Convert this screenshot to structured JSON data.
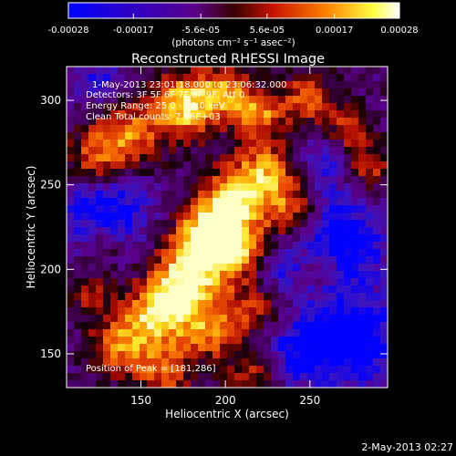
{
  "colorbar": {
    "ticks": [
      "-0.00028",
      "-0.00017",
      "-5.6e-05",
      "5.6e-05",
      "0.00017",
      "0.00028"
    ],
    "tick_values": [
      -0.00028,
      -0.00017,
      -5.6e-05,
      5.6e-05,
      0.00017,
      0.00028
    ],
    "range": [
      -0.00028,
      0.00028
    ],
    "units_label": "(photons cm⁻² s⁻¹ asec⁻²)",
    "stops": [
      "#0000ff",
      "#2a00c8",
      "#5a008c",
      "#3a0000",
      "#c81400",
      "#ff8200",
      "#ffff40",
      "#ffffff"
    ]
  },
  "title": "Reconstructed RHESSI Image",
  "info": {
    "time_range": "1-May-2013 23:01:18.000 to 23:06:32.000",
    "detectors": "Detectors: 3F 5F 6F 7F 8F 9F, Att 0",
    "energy": "Energy Range: 25.0 - 50.0 keV",
    "clean": "Clean     Total counts: 7.66E+03"
  },
  "peak_label": "Position of Peak = [181,286]",
  "axes": {
    "xlabel": "Heliocentric X (arcsec)",
    "ylabel": "Heliocentric Y (arcsec)",
    "xlim": [
      106,
      296
    ],
    "ylim": [
      130,
      320
    ],
    "xticks": [
      150,
      200,
      250
    ],
    "yticks": [
      150,
      200,
      250,
      300
    ]
  },
  "timestamp": "2-May-2013 02:27"
}
